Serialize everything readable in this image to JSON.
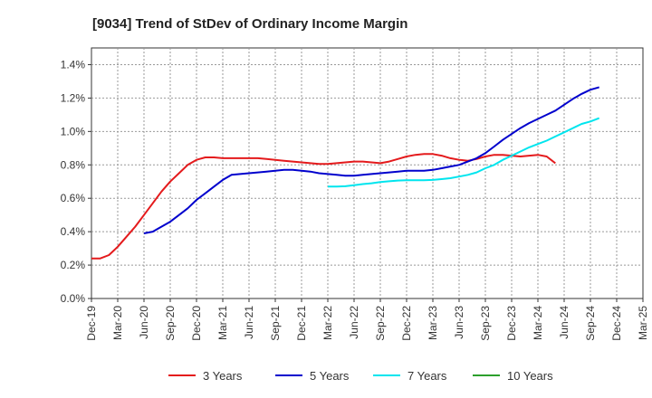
{
  "chart_data": {
    "type": "line",
    "title": "[9034]  Trend of StDev of Ordinary Income Margin",
    "xlabel": "",
    "ylabel": "",
    "x_ticks": [
      "Dec-19",
      "Mar-20",
      "Jun-20",
      "Sep-20",
      "Dec-20",
      "Mar-21",
      "Jun-21",
      "Sep-21",
      "Dec-21",
      "Mar-22",
      "Jun-22",
      "Sep-22",
      "Dec-22",
      "Mar-23",
      "Jun-23",
      "Sep-23",
      "Dec-23",
      "Mar-24",
      "Jun-24",
      "Sep-24",
      "Dec-24",
      "Mar-25"
    ],
    "y_ticks": [
      "0.0%",
      "0.2%",
      "0.4%",
      "0.6%",
      "0.8%",
      "1.0%",
      "1.2%",
      "1.4%"
    ],
    "ylim": [
      0,
      1.5
    ],
    "grid": true,
    "legend_position": "bottom",
    "series": [
      {
        "name": "3 Years",
        "color": "#e41a1c",
        "start_index": 0,
        "values": [
          0.24,
          0.24,
          0.26,
          0.31,
          0.37,
          0.43,
          0.5,
          0.57,
          0.64,
          0.7,
          0.75,
          0.8,
          0.83,
          0.845,
          0.845,
          0.84,
          0.84,
          0.84,
          0.84,
          0.84,
          0.835,
          0.83,
          0.825,
          0.82,
          0.815,
          0.81,
          0.805,
          0.805,
          0.81,
          0.815,
          0.82,
          0.82,
          0.815,
          0.81,
          0.82,
          0.835,
          0.85,
          0.86,
          0.865,
          0.865,
          0.855,
          0.84,
          0.83,
          0.825,
          0.835,
          0.85,
          0.86,
          0.86,
          0.855,
          0.85,
          0.855,
          0.86,
          0.85,
          0.81
        ]
      },
      {
        "name": "5 Years",
        "color": "#0000cd",
        "start_index": 6,
        "values": [
          0.39,
          0.4,
          0.43,
          0.46,
          0.5,
          0.54,
          0.59,
          0.63,
          0.67,
          0.71,
          0.74,
          0.745,
          0.75,
          0.755,
          0.76,
          0.765,
          0.77,
          0.77,
          0.765,
          0.76,
          0.75,
          0.745,
          0.74,
          0.735,
          0.735,
          0.74,
          0.745,
          0.75,
          0.755,
          0.76,
          0.765,
          0.765,
          0.765,
          0.77,
          0.78,
          0.79,
          0.8,
          0.82,
          0.84,
          0.87,
          0.91,
          0.95,
          0.985,
          1.02,
          1.05,
          1.075,
          1.1,
          1.125,
          1.16,
          1.195,
          1.225,
          1.25,
          1.265
        ]
      },
      {
        "name": "7 Years",
        "color": "#00e5ee",
        "start_index": 27,
        "values": [
          0.67,
          0.67,
          0.672,
          0.678,
          0.685,
          0.69,
          0.697,
          0.702,
          0.706,
          0.708,
          0.708,
          0.708,
          0.71,
          0.715,
          0.72,
          0.73,
          0.74,
          0.755,
          0.78,
          0.8,
          0.83,
          0.855,
          0.88,
          0.905,
          0.925,
          0.945,
          0.97,
          0.995,
          1.02,
          1.045,
          1.06,
          1.08
        ]
      },
      {
        "name": "10 Years",
        "color": "#2ca02c",
        "start_index": 0,
        "values": []
      }
    ]
  }
}
